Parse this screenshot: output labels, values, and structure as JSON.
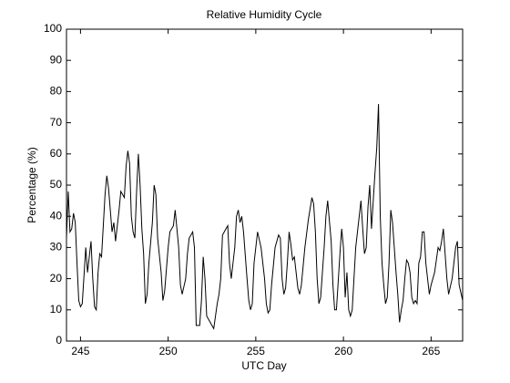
{
  "chart_data": {
    "type": "line",
    "title": "Relative Humidity Cycle",
    "xlabel": "UTC Day",
    "ylabel": "Percentage (%)",
    "series": [
      {
        "name": "Relative Humidity",
        "color": "#000000",
        "x": [
          244.2,
          244.3,
          244.4,
          244.5,
          244.6,
          244.7,
          244.8,
          244.9,
          245.0,
          245.1,
          245.3,
          245.4,
          245.5,
          245.6,
          245.7,
          245.8,
          245.9,
          246.0,
          246.1,
          246.2,
          246.4,
          246.5,
          246.6,
          246.8,
          246.9,
          247.0,
          247.2,
          247.3,
          247.5,
          247.6,
          247.7,
          247.8,
          247.9,
          248.0,
          248.1,
          248.2,
          248.3,
          248.4,
          248.5,
          248.6,
          248.7,
          248.8,
          248.9,
          249.1,
          249.2,
          249.3,
          249.4,
          249.6,
          249.7,
          249.8,
          250.0,
          250.1,
          250.3,
          250.4,
          250.5,
          250.6,
          250.7,
          250.8,
          251.0,
          251.1,
          251.2,
          251.4,
          251.5,
          251.6,
          251.8,
          251.9,
          252.0,
          252.1,
          252.2,
          252.4,
          252.6,
          252.8,
          252.9,
          253.0,
          253.1,
          253.3,
          253.4,
          253.5,
          253.6,
          253.7,
          253.8,
          253.9,
          254.0,
          254.1,
          254.2,
          254.3,
          254.5,
          254.6,
          254.7,
          254.8,
          254.9,
          255.1,
          255.3,
          255.5,
          255.6,
          255.7,
          255.8,
          255.9,
          256.1,
          256.3,
          256.4,
          256.5,
          256.6,
          256.7,
          256.8,
          256.9,
          257.0,
          257.1,
          257.2,
          257.4,
          257.5,
          257.6,
          257.8,
          258.0,
          258.2,
          258.3,
          258.4,
          258.5,
          258.6,
          258.7,
          258.9,
          259.0,
          259.1,
          259.3,
          259.4,
          259.5,
          259.6,
          259.8,
          259.9,
          260.0,
          260.1,
          260.2,
          260.3,
          260.4,
          260.5,
          260.7,
          260.9,
          261.0,
          261.1,
          261.2,
          261.3,
          261.4,
          261.5,
          261.6,
          261.7,
          261.8,
          261.9,
          262.0,
          262.1,
          262.2,
          262.3,
          262.4,
          262.5,
          262.6,
          262.7,
          262.8,
          262.9,
          263.0,
          263.1,
          263.2,
          263.3,
          263.4,
          263.5,
          263.6,
          263.7,
          263.8,
          263.9,
          264.0,
          264.1,
          264.2,
          264.3,
          264.4,
          264.5,
          264.6,
          264.7,
          264.8,
          264.9,
          265.0,
          265.2,
          265.4,
          265.5,
          265.6,
          265.7,
          265.8,
          265.9,
          266.0,
          266.2,
          266.4,
          266.5,
          266.6,
          266.8
        ],
        "values": [
          33,
          48,
          35,
          36,
          41,
          38,
          25,
          13,
          11,
          12,
          30,
          22,
          27,
          32,
          20,
          11,
          10,
          22,
          28,
          27,
          47,
          53,
          49,
          35,
          38,
          32,
          42,
          48,
          46,
          56,
          61,
          57,
          40,
          35,
          33,
          48,
          60,
          50,
          36,
          28,
          12,
          15,
          25,
          38,
          50,
          47,
          33,
          22,
          13,
          16,
          30,
          35,
          37,
          42,
          36,
          30,
          18,
          15,
          20,
          28,
          33,
          35,
          30,
          5,
          5,
          13,
          27,
          20,
          8,
          6,
          4,
          12,
          15,
          20,
          34,
          36,
          37,
          25,
          20,
          25,
          30,
          40,
          42,
          38,
          40,
          35,
          20,
          13,
          10,
          12,
          25,
          35,
          30,
          20,
          12,
          9,
          10,
          18,
          30,
          34,
          33,
          20,
          15,
          17,
          25,
          35,
          31,
          26,
          27,
          17,
          15,
          18,
          30,
          39,
          46,
          44,
          35,
          20,
          12,
          14,
          30,
          40,
          45,
          32,
          18,
          10,
          10,
          28,
          36,
          30,
          14,
          22,
          10,
          8,
          10,
          30,
          40,
          45,
          36,
          28,
          30,
          43,
          50,
          36,
          45,
          54,
          62,
          76,
          40,
          25,
          18,
          12,
          14,
          25,
          42,
          38,
          30,
          22,
          15,
          6,
          10,
          13,
          20,
          26,
          25,
          22,
          14,
          12,
          13,
          12,
          25,
          27,
          35,
          35,
          25,
          20,
          15,
          18,
          22,
          30,
          29,
          32,
          36,
          28,
          20,
          15,
          20,
          30,
          32,
          18,
          13
        ]
      }
    ],
    "xlim": [
      244.2,
      266.8
    ],
    "xticks": [
      245,
      250,
      255,
      260,
      265
    ],
    "ylim": [
      0,
      100
    ],
    "yticks": [
      0,
      10,
      20,
      30,
      40,
      50,
      60,
      70,
      80,
      90,
      100
    ]
  }
}
